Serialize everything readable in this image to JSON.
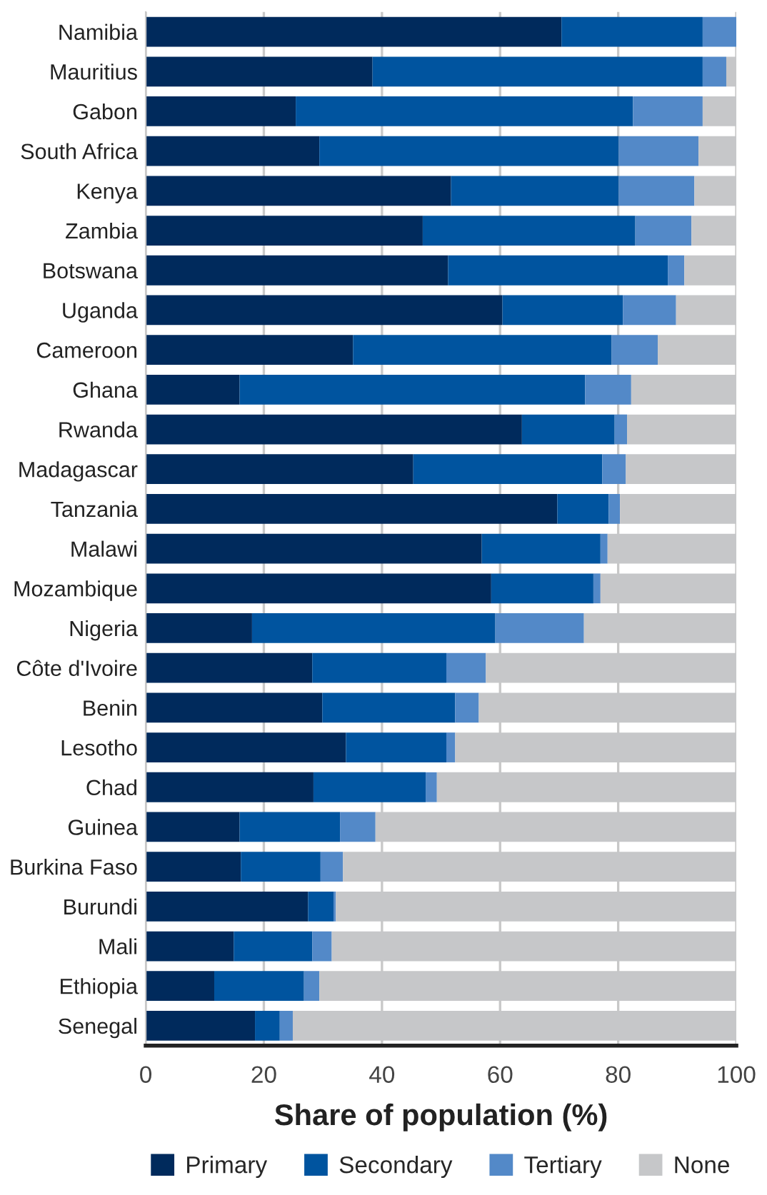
{
  "chart_data": {
    "type": "bar",
    "orientation": "horizontal",
    "stacked": true,
    "xlabel": "Share of population (%)",
    "categories": [
      "Namibia",
      "Mauritius",
      "Gabon",
      "South Africa",
      "Kenya",
      "Zambia",
      "Botswana",
      "Uganda",
      "Cameroon",
      "Ghana",
      "Rwanda",
      "Madagascar",
      "Tanzania",
      "Malawi",
      "Mozambique",
      "Nigeria",
      "Côte d'Ivoire",
      "Benin",
      "Lesotho",
      "Chad",
      "Guinea",
      "Burkina Faso",
      "Burundi",
      "Mali",
      "Ethiopia",
      "Senegal"
    ],
    "series": [
      {
        "name": "Primary",
        "color": "#002a5c",
        "values": [
          70.4,
          38.4,
          25.4,
          29.4,
          51.7,
          46.9,
          51.2,
          60.4,
          35.1,
          15.9,
          63.7,
          45.3,
          69.7,
          56.9,
          58.5,
          18.0,
          28.2,
          29.9,
          33.9,
          28.4,
          15.9,
          16.1,
          27.5,
          14.9,
          11.6,
          18.5
        ]
      },
      {
        "name": "Secondary",
        "color": "#00549f",
        "values": [
          23.9,
          55.9,
          57.1,
          50.7,
          28.4,
          36.0,
          37.2,
          20.4,
          43.8,
          58.5,
          15.7,
          32.0,
          8.7,
          20.1,
          17.3,
          41.2,
          22.7,
          22.5,
          17.0,
          19.0,
          17.0,
          13.5,
          4.3,
          13.3,
          15.2,
          4.2
        ]
      },
      {
        "name": "Tertiary",
        "color": "#5389c8",
        "values": [
          5.7,
          4.0,
          11.8,
          13.5,
          12.8,
          9.5,
          2.8,
          9.0,
          7.8,
          7.8,
          2.1,
          4.0,
          1.9,
          1.2,
          1.2,
          15.0,
          6.7,
          4.0,
          1.5,
          1.9,
          6.0,
          3.8,
          0.4,
          3.3,
          2.6,
          2.2
        ]
      },
      {
        "name": "None",
        "color": "#c6c7c9",
        "values": [
          0.0,
          1.7,
          5.7,
          6.4,
          7.1,
          7.6,
          8.8,
          10.2,
          13.3,
          17.8,
          18.5,
          18.7,
          19.7,
          21.8,
          23.0,
          25.8,
          42.4,
          43.6,
          47.6,
          50.7,
          61.1,
          66.6,
          67.8,
          68.5,
          70.6,
          75.1
        ]
      }
    ],
    "xlim": [
      0,
      100
    ],
    "xticks": [
      0,
      20,
      40,
      60,
      80,
      100
    ],
    "grid": "x",
    "legend": "bottom"
  }
}
